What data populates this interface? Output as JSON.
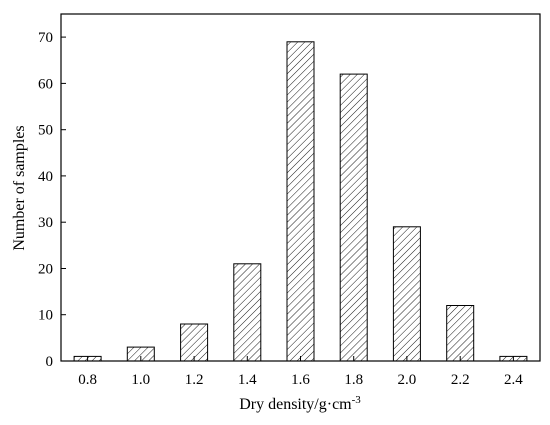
{
  "chart_data": {
    "type": "bar",
    "xlabel": "Dry density/g·cm",
    "xlabel_sup": "-3",
    "ylabel": "Number of samples",
    "categories": [
      "0.8",
      "1.0",
      "1.2",
      "1.4",
      "1.6",
      "1.8",
      "2.0",
      "2.2",
      "2.4"
    ],
    "values": [
      1,
      3,
      8,
      21,
      69,
      62,
      29,
      12,
      1
    ],
    "ylim": [
      0,
      75
    ],
    "yticks": [
      0,
      10,
      20,
      30,
      40,
      50,
      60,
      70
    ],
    "bar_fill": "hatched (diagonal lines)",
    "grid": false,
    "legend": "none"
  },
  "colors": {
    "bar_stroke": "#000000",
    "hatch": "#000000",
    "background": "#ffffff"
  }
}
